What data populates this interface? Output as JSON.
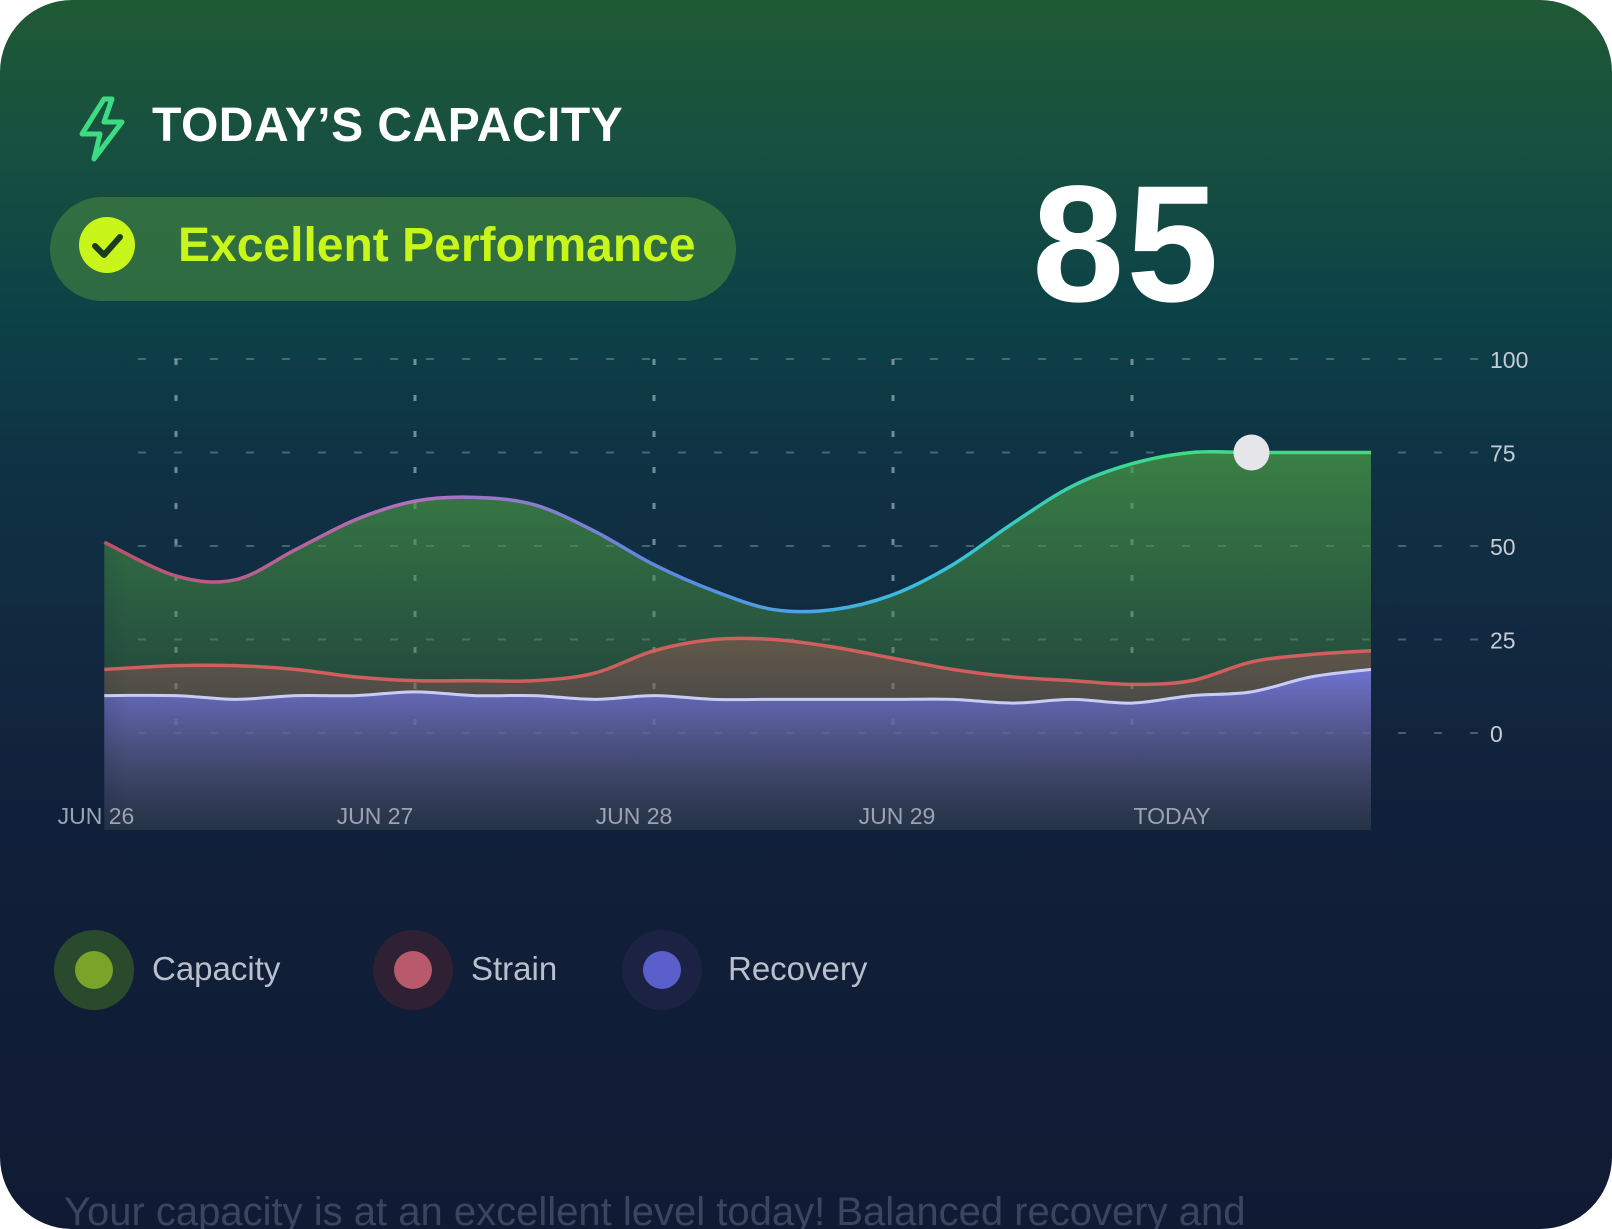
{
  "header": {
    "title": "TODAY’S CAPACITY",
    "icon": "bolt-icon",
    "accent": "#3ddc84"
  },
  "status": {
    "label": "Excellent Performance",
    "icon": "check-circle-icon",
    "color": "#c8f51a"
  },
  "score": "85",
  "chart_data": {
    "type": "area",
    "categories": [
      "JUN 26",
      "JUN 27",
      "JUN 28",
      "JUN 29",
      "TODAY"
    ],
    "x": [
      -0.3,
      0,
      0.25,
      0.5,
      0.75,
      1,
      1.25,
      1.5,
      1.75,
      2,
      2.25,
      2.5,
      2.75,
      3,
      3.25,
      3.5,
      3.75,
      4,
      4.25,
      4.5,
      4.75,
      5.0
    ],
    "yticks": [
      0,
      25,
      50,
      75,
      100
    ],
    "ylim": [
      0,
      100
    ],
    "grid": true,
    "series": [
      {
        "name": "Capacity",
        "color": "#3ddc84",
        "values": [
          51,
          42,
          41,
          49,
          57,
          62,
          63,
          61,
          54,
          45,
          38,
          33,
          33,
          37,
          45,
          56,
          66,
          72,
          75,
          75,
          75,
          75
        ]
      },
      {
        "name": "Strain",
        "color": "#e06060",
        "values": [
          17,
          18,
          18,
          17,
          15,
          14,
          14,
          14,
          16,
          22,
          25,
          25,
          23,
          20,
          17,
          15,
          14,
          13,
          14,
          19,
          21,
          22
        ]
      },
      {
        "name": "Recovery",
        "color": "#6a6fd8",
        "values": [
          10,
          10,
          9,
          10,
          10,
          11,
          10,
          10,
          9,
          10,
          9,
          9,
          9,
          9,
          9,
          8,
          9,
          8,
          10,
          11,
          15,
          17
        ]
      }
    ],
    "highlight": {
      "x": 4.5,
      "y": 75
    }
  },
  "legend": [
    {
      "label": "Capacity",
      "color": "#7aa32a",
      "ring": "#2a4a2d"
    },
    {
      "label": "Strain",
      "color": "#b85a6c",
      "ring": "#2f2034"
    },
    {
      "label": "Recovery",
      "color": "#5a5fcc",
      "ring": "#1c2244"
    }
  ],
  "summary": "Your capacity is at an excellent level today! Balanced recovery and"
}
